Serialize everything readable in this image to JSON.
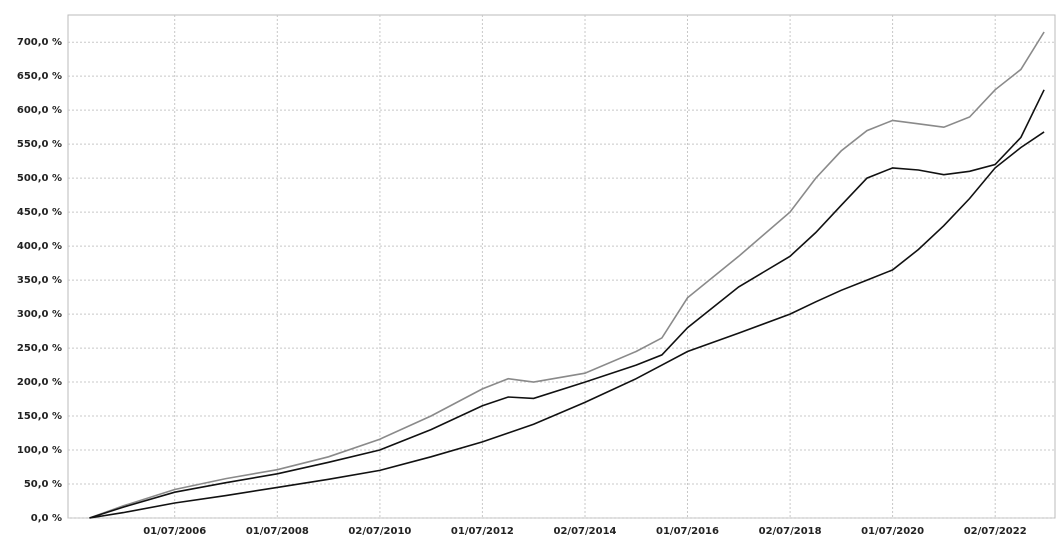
{
  "chart_data": {
    "type": "line",
    "x": [
      "2004-11-01",
      "2005-07-01",
      "2006-07-01",
      "2007-07-01",
      "2008-07-01",
      "2009-07-01",
      "2010-07-01",
      "2011-07-01",
      "2012-07-01",
      "2013-01-01",
      "2013-07-01",
      "2014-07-01",
      "2015-07-01",
      "2016-01-01",
      "2016-07-01",
      "2017-07-01",
      "2018-07-01",
      "2019-01-01",
      "2019-07-01",
      "2020-01-01",
      "2020-07-01",
      "2021-01-01",
      "2021-07-01",
      "2022-01-01",
      "2022-07-01",
      "2023-01-01",
      "2023-06-15"
    ],
    "series": [
      {
        "color": "#8a8a8a",
        "values": [
          0,
          18,
          42,
          58,
          71,
          90,
          116,
          150,
          190,
          205,
          200,
          213,
          245,
          265,
          324,
          385,
          450,
          500,
          540,
          570,
          585,
          580,
          575,
          590,
          630,
          660,
          715
        ]
      },
      {
        "color": "#111111",
        "values": [
          0,
          16,
          38,
          52,
          65,
          82,
          100,
          130,
          165,
          178,
          176,
          200,
          225,
          240,
          280,
          340,
          385,
          420,
          460,
          500,
          515,
          512,
          505,
          510,
          520,
          560,
          630
        ]
      },
      {
        "color": "#111111",
        "values": [
          0,
          8,
          22,
          33,
          45,
          57,
          70,
          90,
          112,
          125,
          138,
          170,
          205,
          225,
          245,
          272,
          300,
          318,
          335,
          350,
          365,
          395,
          430,
          470,
          515,
          545,
          568
        ]
      }
    ],
    "xlim": [
      "2004-06-01",
      "2023-09-01"
    ],
    "xticks": [
      {
        "value": "2006-07-01",
        "label": "01/07/2006"
      },
      {
        "value": "2008-07-01",
        "label": "01/07/2008"
      },
      {
        "value": "2010-07-02",
        "label": "02/07/2010"
      },
      {
        "value": "2012-07-01",
        "label": "01/07/2012"
      },
      {
        "value": "2014-07-02",
        "label": "02/07/2014"
      },
      {
        "value": "2016-07-01",
        "label": "01/07/2016"
      },
      {
        "value": "2018-07-02",
        "label": "02/07/2018"
      },
      {
        "value": "2020-07-01",
        "label": "01/07/2020"
      },
      {
        "value": "2022-07-02",
        "label": "02/07/2022"
      }
    ],
    "ylim": [
      0,
      740
    ],
    "yticks": [
      {
        "value": 0,
        "label": "0,0 %"
      },
      {
        "value": 50,
        "label": "50,0 %"
      },
      {
        "value": 100,
        "label": "100,0 %"
      },
      {
        "value": 150,
        "label": "150,0 %"
      },
      {
        "value": 200,
        "label": "200,0 %"
      },
      {
        "value": 250,
        "label": "250,0 %"
      },
      {
        "value": 300,
        "label": "300,0 %"
      },
      {
        "value": 350,
        "label": "350,0 %"
      },
      {
        "value": 400,
        "label": "400,0 %"
      },
      {
        "value": 450,
        "label": "450,0 %"
      },
      {
        "value": 500,
        "label": "500,0 %"
      },
      {
        "value": 550,
        "label": "550,0 %"
      },
      {
        "value": 600,
        "label": "600,0 %"
      },
      {
        "value": 650,
        "label": "650,0 %"
      },
      {
        "value": 700,
        "label": "700,0 %"
      }
    ],
    "grid": true
  }
}
